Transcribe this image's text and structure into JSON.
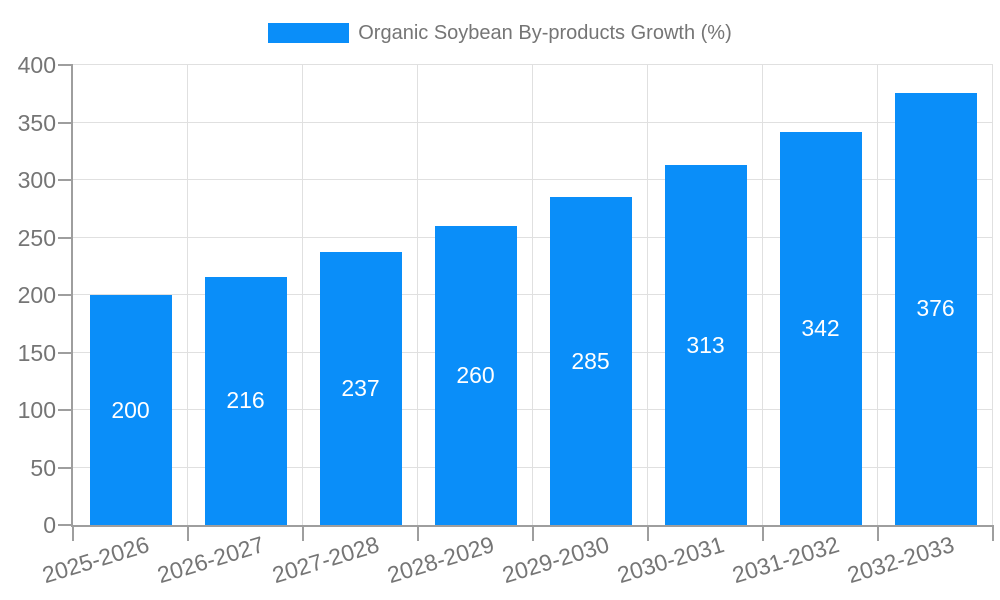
{
  "legend": {
    "label": "Organic Soybean By-products Growth (%)"
  },
  "chart_data": {
    "type": "bar",
    "title": "Organic Soybean By-products Growth (%)",
    "categories": [
      "2025-2026",
      "2026-2027",
      "2027-2028",
      "2028-2029",
      "2029-2030",
      "2030-2031",
      "2031-2032",
      "2032-2033"
    ],
    "values": [
      200,
      216,
      237,
      260,
      285,
      313,
      342,
      376
    ],
    "xlabel": "",
    "ylabel": "",
    "ylim": [
      0,
      400
    ],
    "yticks": [
      0,
      50,
      100,
      150,
      200,
      250,
      300,
      350,
      400
    ],
    "grid": true,
    "legend_position": "top-center",
    "x_label_rotation_deg": -17,
    "bar_color": "#0a8ef9",
    "value_label_color": "#ffffff",
    "tick_label_color": "#757575",
    "gridline_color": "#e0e0e0",
    "axis_line_color": "#9e9e9e"
  }
}
